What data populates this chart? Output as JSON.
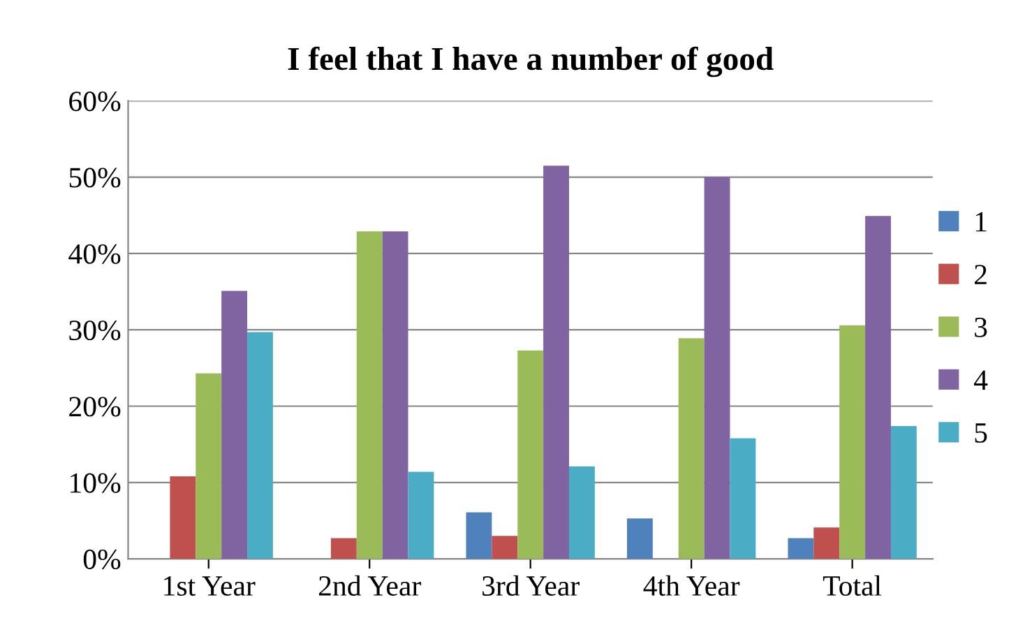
{
  "chart_data": {
    "type": "bar",
    "title": "I feel that I have a number of good",
    "categories": [
      "1st Year",
      "2nd Year",
      "3rd Year",
      "4th Year",
      "Total"
    ],
    "series": [
      {
        "name": "1",
        "color": "#4f81bd",
        "values": [
          0,
          0,
          6.1,
          5.3,
          2.7
        ]
      },
      {
        "name": "2",
        "color": "#c0504d",
        "values": [
          10.8,
          2.7,
          3.0,
          0,
          4.1
        ]
      },
      {
        "name": "3",
        "color": "#9bbb59",
        "values": [
          24.3,
          42.9,
          27.3,
          28.9,
          30.6
        ]
      },
      {
        "name": "4",
        "color": "#8064a2",
        "values": [
          35.1,
          42.9,
          51.5,
          50.0,
          44.9
        ]
      },
      {
        "name": "5",
        "color": "#4bacc6",
        "values": [
          29.7,
          11.4,
          12.1,
          15.8,
          17.4
        ]
      }
    ],
    "ylim": [
      0,
      60
    ],
    "yticks": [
      {
        "value": 0,
        "label": "0%"
      },
      {
        "value": 10,
        "label": "10%"
      },
      {
        "value": 20,
        "label": "20%"
      },
      {
        "value": 30,
        "label": "30%"
      },
      {
        "value": 40,
        "label": "40%"
      },
      {
        "value": 50,
        "label": "50%"
      },
      {
        "value": 60,
        "label": "60%"
      }
    ],
    "grid": "y",
    "legend": "right"
  }
}
